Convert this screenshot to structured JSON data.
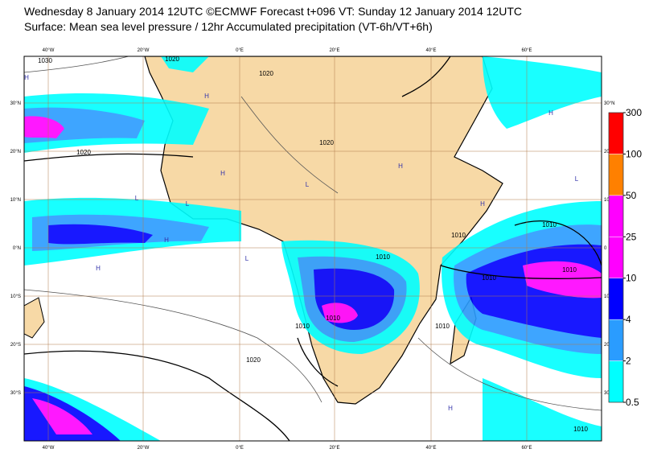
{
  "header": {
    "title": "Wednesday 8 January 2014 12UTC ©ECMWF Forecast t+096 VT: Sunday 12 January 2014 12UTC",
    "subtitle": "Surface: Mean sea level pressure / 12hr Accumulated precipitation (VT-6h/VT+6h)"
  },
  "map": {
    "longitude_labels": [
      "40°W",
      "20°W",
      "0°E",
      "20°E",
      "40°E",
      "60°E"
    ],
    "latitude_labels": [
      "30°N",
      "20°N",
      "10°N",
      "0°N",
      "10°S",
      "20°S",
      "30°S"
    ],
    "right_latitude_labels": [
      "30°N",
      "20",
      "10",
      "0",
      "10",
      "20",
      "30"
    ],
    "isobar_labels": [
      "1030",
      "1020",
      "1020",
      "1020",
      "1020",
      "1020",
      "1010",
      "1010",
      "1010",
      "1010",
      "1010",
      "1010",
      "1010",
      "1010",
      "1010"
    ],
    "pressure_centres": [
      "H",
      "H",
      "H",
      "H",
      "H",
      "L",
      "L",
      "L",
      "H",
      "L",
      "H",
      "H",
      "H",
      "L"
    ]
  },
  "colorbar": {
    "levels": [
      0.5,
      2,
      4,
      10,
      25,
      50,
      100,
      300
    ],
    "colors": [
      "#00ffff",
      "#2a9cff",
      "#0000ff",
      "#ff00ff",
      "#ff00ff",
      "#ff8000",
      "#ff0000"
    ]
  }
}
